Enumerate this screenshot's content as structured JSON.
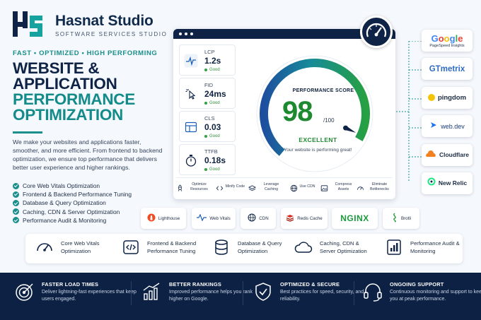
{
  "brand": {
    "name": "Hasnat Studio",
    "subtitle": "SOFTWARE SERVICES STUDIO"
  },
  "hero": {
    "tagline": "FAST • OPTIMIZED • HIGH PERFORMING",
    "headline": [
      "WEBSITE &",
      "APPLICATION"
    ],
    "headline_accent": [
      "PERFORMANCE",
      "OPTIMIZATION"
    ],
    "description": "We make your websites and applications faster, smoother, and more efficient. From frontend to backend optimization, we ensure top performance that delivers better user experience and higher rankings.",
    "bullets": [
      "Core Web Vitals Optimization",
      "Frontend & Backend Performance Tuning",
      "Database & Query Optimization",
      "Caching, CDN & Server Optimization",
      "Performance Audit & Monitoring"
    ]
  },
  "dashboard": {
    "metrics": [
      {
        "name": "LCP",
        "value": "1.2s",
        "status": "Good",
        "icon": "pulse-icon"
      },
      {
        "name": "FID",
        "value": "24ms",
        "status": "Good",
        "icon": "pointer-click-icon"
      },
      {
        "name": "CLS",
        "value": "0.03",
        "status": "Good",
        "icon": "layout-icon"
      },
      {
        "name": "TTFB",
        "value": "0.18s",
        "status": "Good",
        "icon": "stopwatch-icon"
      }
    ],
    "score": {
      "label": "PERFORMANCE SCORE",
      "value": 98,
      "value_text": "98",
      "max_text": "/100",
      "status": "EXCELLENT",
      "message": "Your website is performing great!"
    },
    "optimizations": [
      {
        "label": "Optimize Resources",
        "icon": "rocket-icon"
      },
      {
        "label": "Minify Code",
        "icon": "code-icon"
      },
      {
        "label": "Leverage Caching",
        "icon": "layers-icon"
      },
      {
        "label": "Use CDN",
        "icon": "globe-icon"
      },
      {
        "label": "Compress Assets",
        "icon": "image-icon"
      },
      {
        "label": "Eliminate Bottlenecks",
        "icon": "speedometer-icon"
      }
    ]
  },
  "tools": [
    {
      "name": "Google",
      "sub": "PageSpeed Insights"
    },
    {
      "name": "GTmetrix",
      "sub": ""
    },
    {
      "name": "pingdom",
      "sub": ""
    },
    {
      "name": "web.dev",
      "sub": ""
    },
    {
      "name": "Cloudflare",
      "sub": ""
    },
    {
      "name": "New Relic",
      "sub": ""
    }
  ],
  "tech": [
    "Lighthouse",
    "Web Vitals",
    "CDN",
    "Redis Cache",
    "NGINX",
    "Brotli"
  ],
  "services": [
    {
      "label": "Core Web Vitals Optimization",
      "icon": "gauge-icon"
    },
    {
      "label": "Frontend & Backend Performance Tuning",
      "icon": "code-brackets-icon"
    },
    {
      "label": "Database & Query Optimization",
      "icon": "database-icon"
    },
    {
      "label": "Caching, CDN & Server Optimization",
      "icon": "cloud-icon"
    },
    {
      "label": "Performance Audit & Monitoring",
      "icon": "report-icon"
    }
  ],
  "features": [
    {
      "title": "FASTER LOAD TIMES",
      "desc": "Deliver lightning-fast experiences that keep users engaged.",
      "icon": "target-icon"
    },
    {
      "title": "BETTER RANKINGS",
      "desc": "Improved performance helps you rank higher on Google.",
      "icon": "growth-chart-icon"
    },
    {
      "title": "OPTIMIZED & SECURE",
      "desc": "Best practices for speed, security, and reliability.",
      "icon": "shield-icon"
    },
    {
      "title": "ONGOING SUPPORT",
      "desc": "Continuous monitoring and support to keep you at peak performance.",
      "icon": "headset-icon"
    }
  ],
  "colors": {
    "navy": "#0f2347",
    "teal": "#138b8a",
    "green": "#1e8a2f",
    "band": "#0d2144"
  }
}
